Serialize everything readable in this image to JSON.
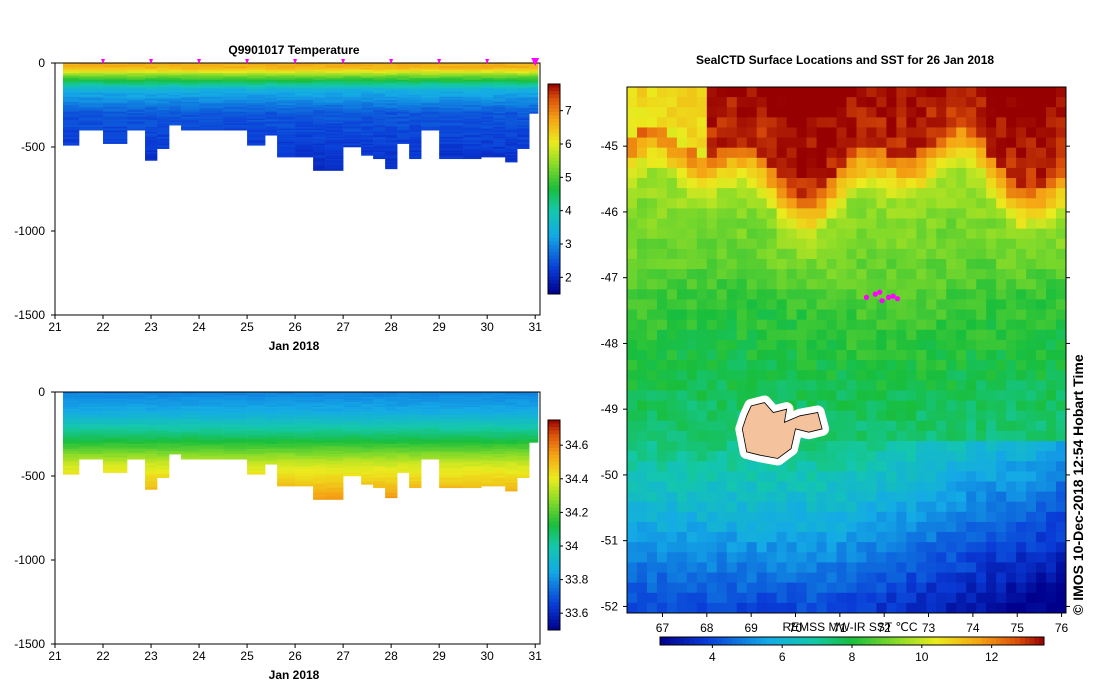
{
  "chart_data": [
    {
      "type": "heatmap",
      "title": "Q9901017  Temperature",
      "xlabel": "Jan 2018",
      "ylabel": "",
      "xlim": [
        21,
        31.1
      ],
      "ylim": [
        -1500,
        0
      ],
      "x_ticks": [
        "21",
        "22",
        "23",
        "24",
        "25",
        "26",
        "27",
        "28",
        "29",
        "30",
        "31"
      ],
      "y_ticks": [
        "0",
        "-500",
        "-1000",
        "-1500"
      ],
      "colorbar": {
        "range": [
          1.5,
          7.8
        ],
        "ticks": [
          "2",
          "3",
          "4",
          "5",
          "6",
          "7"
        ]
      },
      "profile_markers": [
        22,
        23,
        24,
        25,
        26,
        27,
        28,
        29,
        30,
        31
      ],
      "profile_days": [
        21.25,
        21.75,
        22.25,
        22.75,
        23.0,
        23.25,
        23.5,
        23.75,
        24.25,
        24.75,
        25.25,
        25.5,
        25.75,
        26.25,
        26.5,
        26.75,
        27.25,
        27.5,
        27.75,
        28.0,
        28.25,
        28.5,
        28.75,
        29.25,
        29.75,
        30.0,
        30.25,
        30.5,
        30.75,
        31.0
      ],
      "profile_depths": [
        490,
        400,
        480,
        400,
        580,
        510,
        370,
        400,
        400,
        400,
        490,
        430,
        560,
        560,
        640,
        640,
        500,
        550,
        570,
        630,
        480,
        570,
        400,
        570,
        570,
        560,
        560,
        590,
        510,
        300
      ]
    },
    {
      "type": "heatmap",
      "title": "",
      "xlabel": "Jan 2018",
      "ylabel": "",
      "xlim": [
        21,
        31.1
      ],
      "ylim": [
        -1500,
        0
      ],
      "x_ticks": [
        "21",
        "22",
        "23",
        "24",
        "25",
        "26",
        "27",
        "28",
        "29",
        "30",
        "31"
      ],
      "y_ticks": [
        "0",
        "-500",
        "-1000",
        "-1500"
      ],
      "colorbar": {
        "range": [
          33.5,
          34.75
        ],
        "ticks": [
          "33.6",
          "33.8",
          "34",
          "34.2",
          "34.4",
          "34.6"
        ]
      },
      "profile_days": [
        21.25,
        21.75,
        22.25,
        22.75,
        23.0,
        23.25,
        23.5,
        23.75,
        24.25,
        24.75,
        25.25,
        25.5,
        25.75,
        26.25,
        26.5,
        26.75,
        27.25,
        27.5,
        27.75,
        28.0,
        28.25,
        28.5,
        28.75,
        29.25,
        29.75,
        30.0,
        30.25,
        30.5,
        30.75,
        31.0
      ],
      "profile_depths": [
        490,
        400,
        480,
        400,
        580,
        510,
        370,
        400,
        400,
        400,
        490,
        430,
        560,
        560,
        640,
        640,
        500,
        550,
        570,
        630,
        480,
        570,
        400,
        570,
        570,
        560,
        560,
        590,
        510,
        300
      ]
    },
    {
      "type": "heatmap",
      "title": "SealCTD Surface Locations and SST for 26 Jan 2018",
      "xlabel": "",
      "ylabel": "",
      "xlim": [
        66.2,
        76.1
      ],
      "ylim": [
        -52.1,
        -44.1
      ],
      "x_ticks": [
        "67",
        "68",
        "69",
        "70",
        "71",
        "72",
        "73",
        "74",
        "75",
        "76"
      ],
      "y_ticks": [
        "-45",
        "-46",
        "-47",
        "-48",
        "-49",
        "-50",
        "-51",
        "-52"
      ],
      "colorbar": {
        "label": "REMSS MW-IR SST ℃C",
        "range": [
          2.5,
          13.5
        ],
        "ticks": [
          "4",
          "6",
          "8",
          "10",
          "12"
        ]
      },
      "seal_locations": [
        {
          "lon": 71.6,
          "lat": -47.3
        },
        {
          "lon": 71.8,
          "lat": -47.25
        },
        {
          "lon": 71.95,
          "lat": -47.35
        },
        {
          "lon": 72.1,
          "lat": -47.3
        },
        {
          "lon": 72.2,
          "lat": -47.28
        },
        {
          "lon": 72.3,
          "lat": -47.32
        },
        {
          "lon": 71.9,
          "lat": -47.22
        }
      ],
      "credit": "©  IMOS 10-Dec-2018 12:54 Hobart Time"
    }
  ]
}
